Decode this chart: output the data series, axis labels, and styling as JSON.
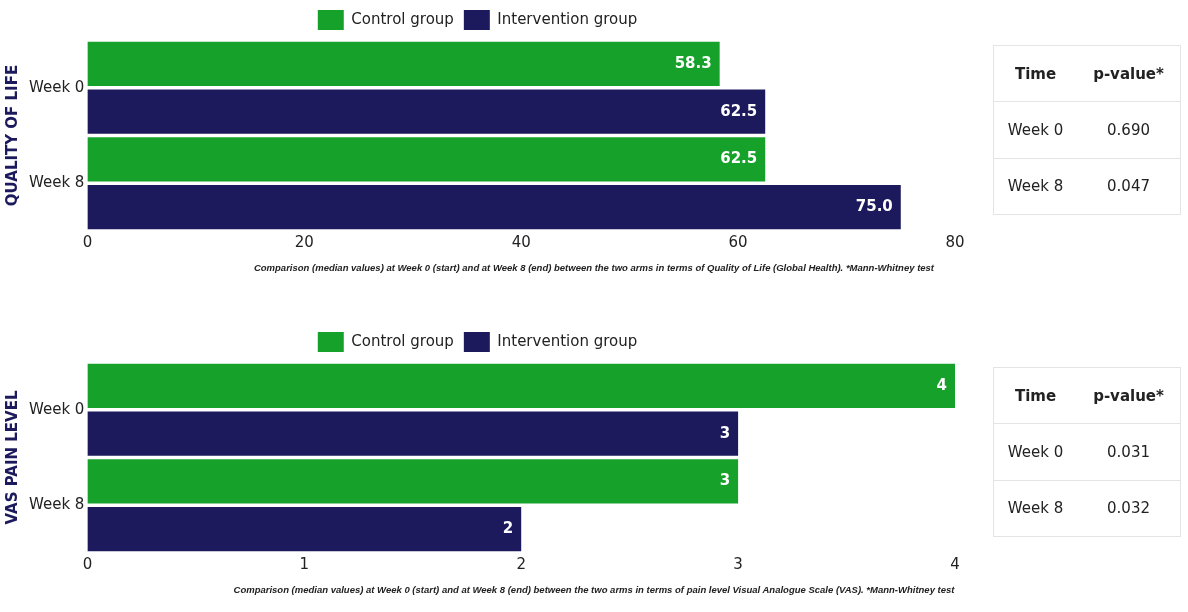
{
  "chart_data": [
    {
      "type": "bar",
      "orientation": "horizontal",
      "ylabel": "QUALITY OF LIFE",
      "categories": [
        "Week 0",
        "Week 8"
      ],
      "series": [
        {
          "name": "Control group",
          "color": "#16a22a",
          "values": [
            58.3,
            62.5
          ],
          "value_labels": [
            "58.3",
            "62.5"
          ]
        },
        {
          "name": "Intervention group",
          "color": "#1c1a5c",
          "values": [
            62.5,
            75.0
          ],
          "value_labels": [
            "62.5",
            "75.0"
          ]
        }
      ],
      "xlim": [
        0,
        80
      ],
      "xticks": [
        0,
        20,
        40,
        60,
        80
      ],
      "grid": false,
      "legend": "top",
      "annotations": [
        "Comparison (median values) at Week 0 (start) and at Week 8 (end) between the two arms in terms of Quality of Life (Global Health). *Mann-Whitney test"
      ]
    },
    {
      "type": "other",
      "annotations": [
        "Time",
        "p-value*",
        "Week 0",
        "0.690",
        "Week 8",
        "0.047"
      ]
    },
    {
      "type": "bar",
      "orientation": "horizontal",
      "ylabel": "VAS PAIN LEVEL",
      "categories": [
        "Week 0",
        "Week 8"
      ],
      "series": [
        {
          "name": "Control group",
          "color": "#16a22a",
          "values": [
            4,
            3
          ]
        },
        {
          "name": "Intervention group",
          "color": "#1c1a5c",
          "values": [
            3,
            2
          ]
        }
      ],
      "xlim": [
        0,
        4
      ],
      "xticks": [
        0,
        1,
        2,
        3,
        4
      ],
      "grid": false,
      "legend": "top",
      "data_labels": true,
      "annotations": [
        "Comparison (median values) at Week 0 (start) and at Week 8 (end) between the two arms in terms of pain level Visual Analogue Scale (VAS). *Mann-Whitney test"
      ]
    },
    {
      "type": "other",
      "annotations": [
        "Time",
        "p-value*",
        "Week 0",
        "0.031",
        "Week 8",
        "0.032"
      ]
    }
  ]
}
